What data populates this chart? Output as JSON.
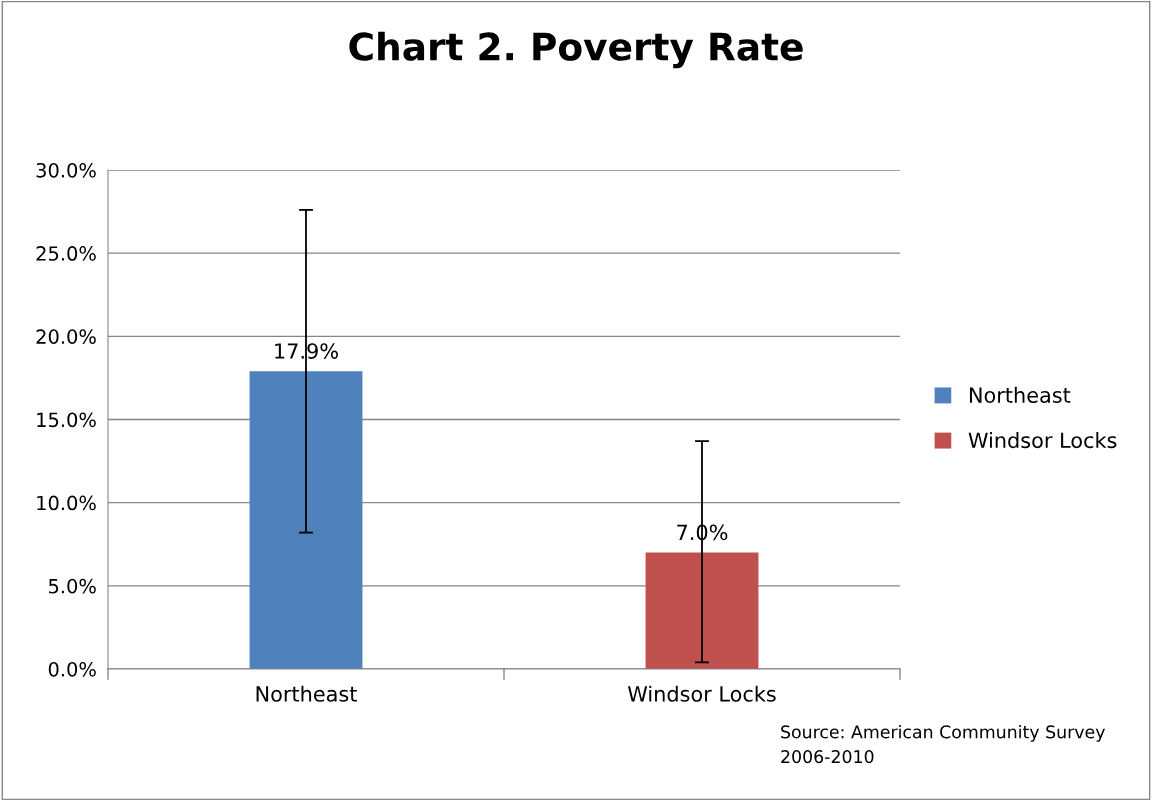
{
  "chart_data": {
    "type": "bar",
    "title": "Chart 2. Poverty Rate",
    "categories": [
      "Northeast",
      "Windsor Locks"
    ],
    "series": [
      {
        "name": "Northeast",
        "color": "#4f81bd",
        "values": [
          17.9,
          null
        ],
        "errors": [
          [
            8.2,
            27.6
          ],
          null
        ],
        "value_labels": [
          "17.9%",
          null
        ]
      },
      {
        "name": "Windsor Locks",
        "color": "#c0504d",
        "values": [
          null,
          7.0
        ],
        "errors": [
          null,
          [
            0.4,
            13.7
          ]
        ],
        "value_labels": [
          null,
          "7.0%"
        ]
      }
    ],
    "ylim": [
      0,
      30
    ],
    "yticks": [
      {
        "value": 0,
        "label": "0.0%"
      },
      {
        "value": 5,
        "label": "5.0%"
      },
      {
        "value": 10,
        "label": "10.0%"
      },
      {
        "value": 15,
        "label": "15.0%"
      },
      {
        "value": 20,
        "label": "20.0%"
      },
      {
        "value": 25,
        "label": "25.0%"
      },
      {
        "value": 30,
        "label": "30.0%"
      }
    ],
    "grid": "y",
    "legend": "right",
    "annotations": [
      "Source: American Community Survey 2006-2010"
    ]
  }
}
